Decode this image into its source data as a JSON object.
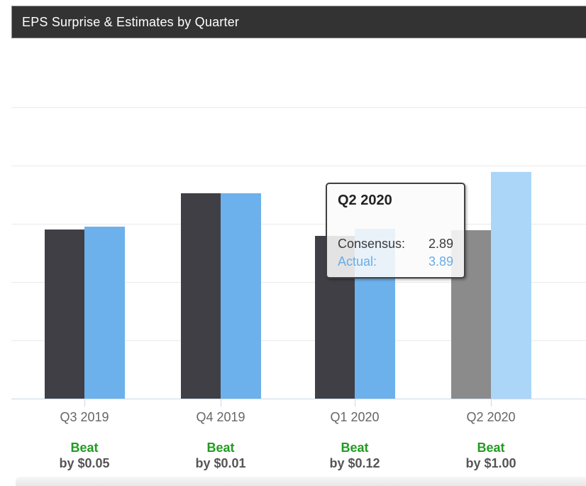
{
  "header": {
    "title": "EPS Surprise & Estimates by Quarter"
  },
  "tooltip": {
    "title": "Q2 2020",
    "rows": [
      {
        "label": "Consensus:",
        "value": "2.89"
      },
      {
        "label": "Actual:",
        "value": "3.89"
      }
    ]
  },
  "chart_data": {
    "type": "bar",
    "title": "EPS Surprise & Estimates by Quarter",
    "categories": [
      "Q3 2019",
      "Q4 2019",
      "Q1 2020",
      "Q2 2020"
    ],
    "series": [
      {
        "name": "Consensus",
        "values": [
          2.9,
          3.52,
          2.79,
          2.89
        ]
      },
      {
        "name": "Actual",
        "values": [
          2.95,
          3.53,
          2.91,
          3.89
        ]
      }
    ],
    "surprise_labels": [
      {
        "result": "Beat",
        "amount": "by $0.05"
      },
      {
        "result": "Beat",
        "amount": "by $0.01"
      },
      {
        "result": "Beat",
        "amount": "by $0.12"
      },
      {
        "result": "Beat",
        "amount": "by $1.00"
      }
    ],
    "highlighted_category": "Q2 2020",
    "highlighted_index": 3,
    "ylim": [
      0,
      6
    ],
    "grid": true,
    "gridline_values": [
      1,
      2,
      3,
      4,
      5
    ],
    "legend": "none",
    "xlabel": "",
    "ylabel": ""
  },
  "colors": {
    "title_bar_bg": "#333333",
    "title_text": "#ffffff",
    "consensus_bar": "#403f45",
    "actual_bar": "#6db1ec",
    "consensus_bar_hover": "#8b8b8b",
    "actual_bar_hover": "#abd6f8",
    "beat_green": "#229b22",
    "amount_gray": "#555555",
    "axis_label": "#666666",
    "gridline": "#ebebeb",
    "axis_line": "#ccd6eb",
    "tooltip_actual_text": "#68ade8"
  }
}
